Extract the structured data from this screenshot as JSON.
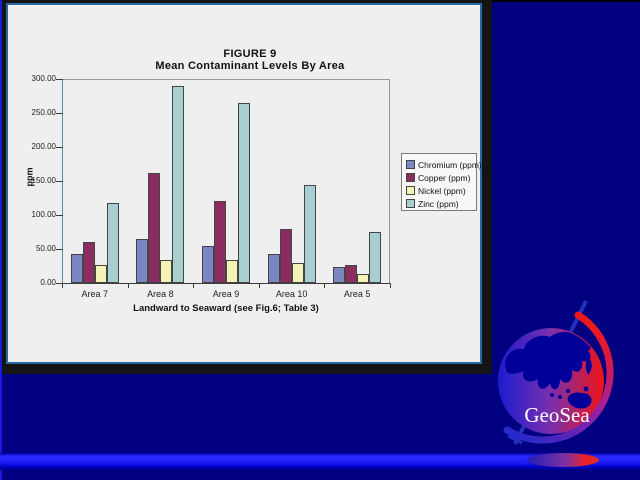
{
  "slide": {
    "background_color": "#000080",
    "bottom_band_color": "#2a2aff",
    "panel_border_color": "#2468a8",
    "panel_background": "#efefef"
  },
  "chart": {
    "title_line1": "FIGURE 9",
    "title_line2": "Mean Contaminant Levels By Area",
    "y_axis_title": "ppm",
    "x_axis_title": "Landward to Seaward (see Fig.6; Table 3)"
  },
  "chart_data": {
    "type": "bar",
    "title": "FIGURE 9",
    "subtitle": "Mean Contaminant Levels By Area",
    "categories": [
      "Area 7",
      "Area 8",
      "Area 9",
      "Area 10",
      "Area 5"
    ],
    "series": [
      {
        "name": "Chromium (ppm)",
        "color": "#7b87c3",
        "values": [
          43,
          64,
          55,
          43,
          23
        ]
      },
      {
        "name": "Copper (ppm)",
        "color": "#8c2d62",
        "values": [
          61,
          162,
          120,
          80,
          27
        ]
      },
      {
        "name": "Nickel (ppm)",
        "color": "#f5f2b5",
        "values": [
          27,
          34,
          34,
          29,
          13
        ]
      },
      {
        "name": "Zinc (ppm)",
        "color": "#a7ced1",
        "values": [
          117,
          289,
          265,
          144,
          75
        ]
      }
    ],
    "xlabel": "Landward to Seaward (see Fig.6; Table 3)",
    "ylabel": "ppm",
    "ylim": [
      0,
      300
    ],
    "ytick_step": 50,
    "ytick_format": "2dp",
    "legend_position": "right",
    "grid": false
  },
  "logo": {
    "text": "GeoSea",
    "globe_left_color": "#1c1ccf",
    "globe_right_color": "#f01414",
    "continent_color": "#000099"
  }
}
